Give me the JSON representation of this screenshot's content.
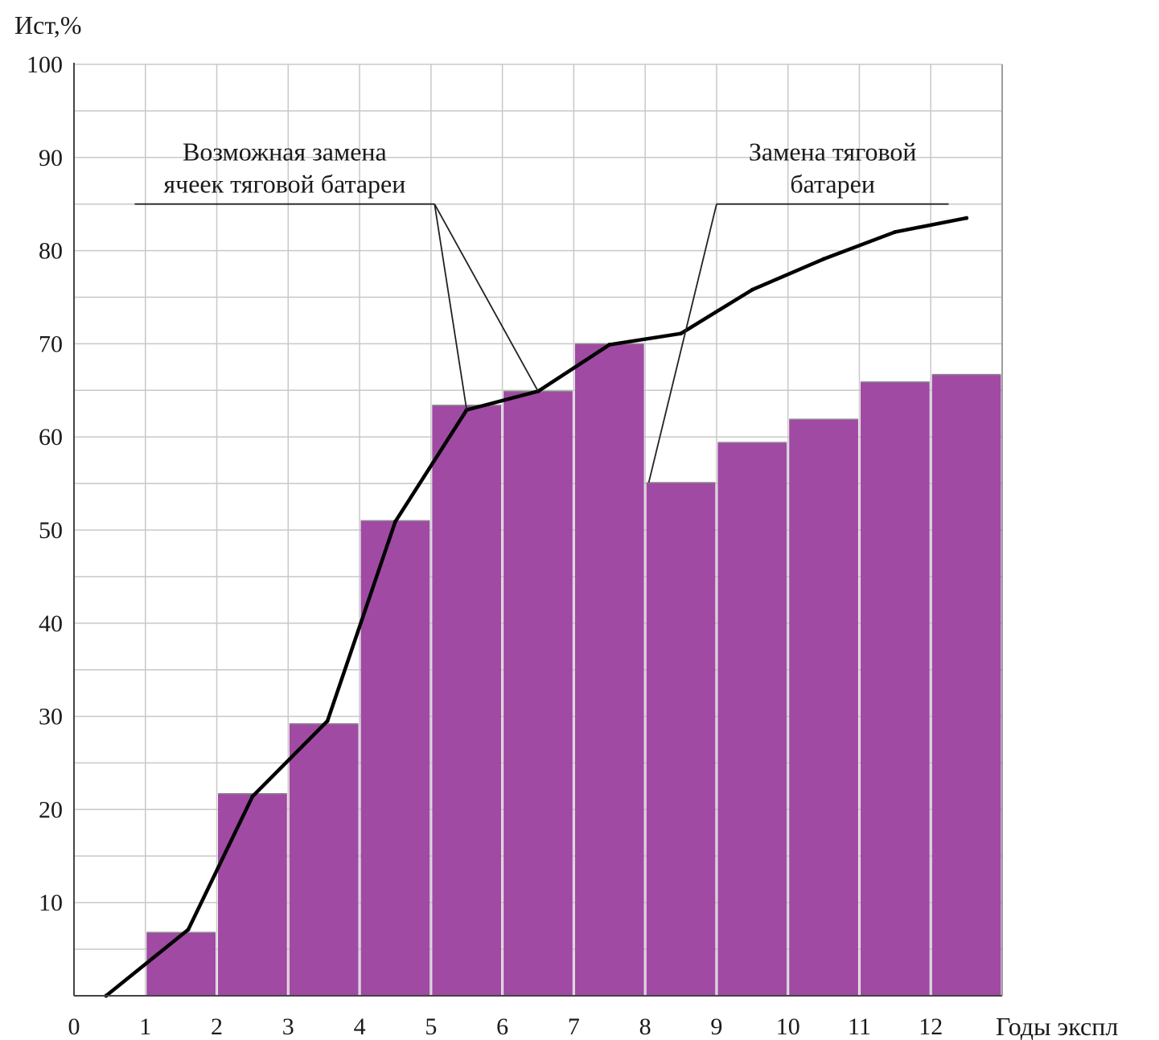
{
  "chart_data": {
    "type": "bar",
    "ylabel": "Ист,%",
    "xlabel": "Годы экспл",
    "xlim": [
      0,
      13
    ],
    "ylim": [
      0,
      100
    ],
    "x_ticks": [
      "0",
      "1",
      "2",
      "3",
      "4",
      "5",
      "6",
      "7",
      "8",
      "9",
      "10",
      "11",
      "12"
    ],
    "y_ticks": [
      "10",
      "20",
      "30",
      "40",
      "50",
      "60",
      "70",
      "80",
      "90",
      "100"
    ],
    "grid": true,
    "bar_color": "#a04aa3",
    "bars": [
      {
        "x_start": 1,
        "x_end": 2,
        "value": 6.8
      },
      {
        "x_start": 2,
        "x_end": 3,
        "value": 21.7
      },
      {
        "x_start": 3,
        "x_end": 4,
        "value": 29.2
      },
      {
        "x_start": 4,
        "x_end": 5,
        "value": 51.0
      },
      {
        "x_start": 5,
        "x_end": 6,
        "value": 63.4
      },
      {
        "x_start": 6,
        "x_end": 7,
        "value": 64.9
      },
      {
        "x_start": 7,
        "x_end": 8,
        "value": 70.0
      },
      {
        "x_start": 8,
        "x_end": 9,
        "value": 55.1
      },
      {
        "x_start": 9,
        "x_end": 10,
        "value": 59.4
      },
      {
        "x_start": 10,
        "x_end": 11,
        "value": 61.9
      },
      {
        "x_start": 11,
        "x_end": 12,
        "value": 65.9
      },
      {
        "x_start": 12,
        "x_end": 13,
        "value": 66.7
      }
    ],
    "line": {
      "color": "#000000",
      "x": [
        0.45,
        1.6,
        2.5,
        3.55,
        4.5,
        5.5,
        6.5,
        7.5,
        8.5,
        9.5,
        10.5,
        11.5,
        12.5
      ],
      "y": [
        0,
        7.1,
        21.4,
        29.5,
        50.9,
        62.9,
        64.9,
        69.9,
        71.1,
        75.8,
        79.1,
        82.0,
        83.5
      ]
    },
    "annotations": [
      {
        "text_lines": [
          "Возможная замена",
          "ячеек тяговой батареи"
        ],
        "bar_from_x": 0.85,
        "bar_to_x": 5.05,
        "bar_y": 85,
        "pointers": [
          {
            "from_x": 5.05,
            "to_x": 5.5,
            "to_y": 62.9
          },
          {
            "from_x": 5.05,
            "to_x": 6.5,
            "to_y": 64.9
          }
        ]
      },
      {
        "text_lines": [
          "Замена тяговой",
          "батареи"
        ],
        "bar_from_x": 9.0,
        "bar_to_x": 12.25,
        "bar_y": 85,
        "pointers": [
          {
            "from_x": 9.0,
            "to_x": 8.05,
            "to_y": 55.1
          }
        ]
      }
    ]
  }
}
